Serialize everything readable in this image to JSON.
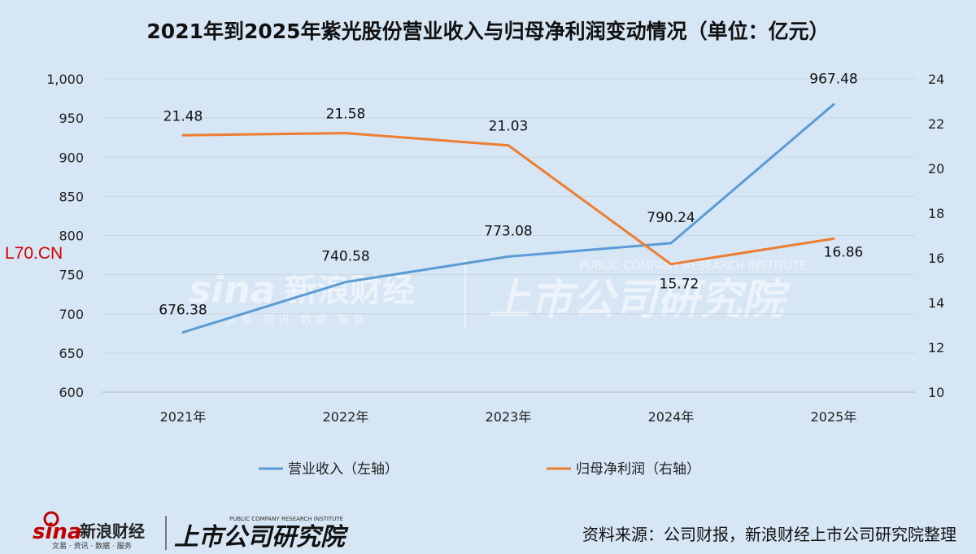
{
  "chart_data": {
    "type": "line",
    "title": "2021年到2025年紫光股份营业收入与归母净利润变动情况（单位：亿元）",
    "categories": [
      "2021年",
      "2022年",
      "2023年",
      "2024年",
      "2025年"
    ],
    "left_axis": {
      "ylim": [
        600,
        1000
      ],
      "ticks": [
        "600",
        "650",
        "700",
        "750",
        "800",
        "850",
        "900",
        "950",
        "1,000"
      ]
    },
    "right_axis": {
      "ylim": [
        10,
        24
      ],
      "ticks": [
        "10",
        "12",
        "14",
        "16",
        "18",
        "20",
        "22",
        "24"
      ]
    },
    "series": [
      {
        "name": "营业收入（左轴）",
        "axis": "left",
        "color": "#5b9bd5",
        "values": [
          676.38,
          740.58,
          773.08,
          790.24,
          967.48
        ],
        "labels": [
          "676.38",
          "740.58",
          "773.08",
          "790.24",
          "967.48"
        ]
      },
      {
        "name": "归母净利润（右轴）",
        "axis": "right",
        "color": "#ed7d31",
        "values": [
          21.48,
          21.58,
          21.03,
          15.72,
          16.86
        ],
        "labels": [
          "21.48",
          "21.58",
          "21.03",
          "15.72",
          "16.86"
        ]
      }
    ],
    "grid": "horizontal",
    "legend_placement": "bottom"
  },
  "corner_mark": "L70.CN",
  "watermark": {
    "sina": "sina",
    "sina_cn": "新浪财经",
    "sina_sub": "文 易 · 资 讯 · 数 据 · 服 务",
    "institute_cn": "上市公司研究院",
    "institute_en": "PUBLIC COMPANY RESEARCH INSTITUTE"
  },
  "footer": {
    "source": "资料来源：公司财报，新浪财经上市公司研究院整理",
    "logo_sina": "sina",
    "logo_sina_cn": "新浪财经",
    "logo_sina_sub": "文易 · 资讯 · 数据 · 服务",
    "logo_institute_cn": "上市公司研究院",
    "logo_institute_en": "PUBLIC COMPANY RESEARCH INSTITUTE"
  }
}
